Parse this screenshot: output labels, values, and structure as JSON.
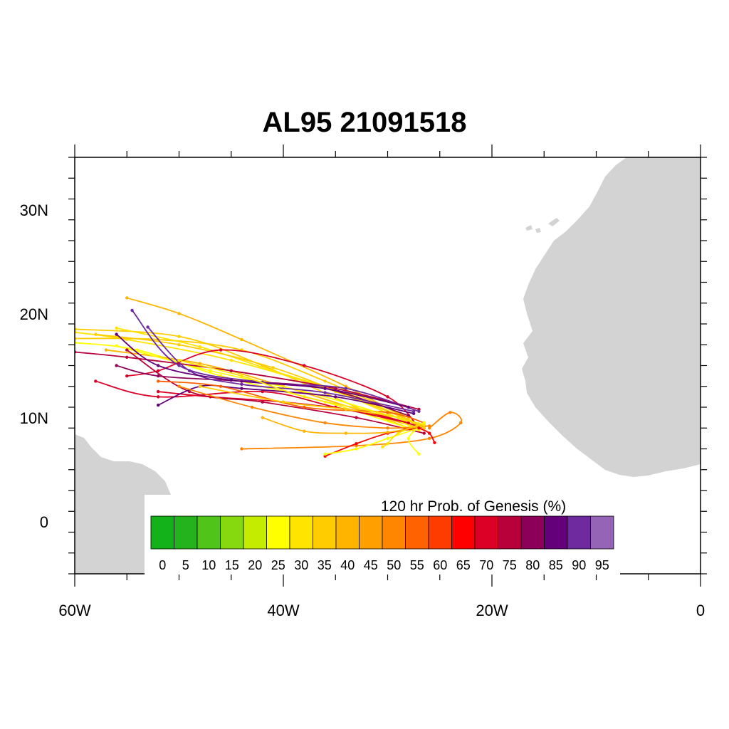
{
  "title": "AL95 21091518",
  "map": {
    "lon_range": [
      -60,
      0
    ],
    "lat_range": [
      -5,
      35
    ],
    "lon_ticks": [
      {
        "value": -60,
        "label": "60W"
      },
      {
        "value": -40,
        "label": "40W"
      },
      {
        "value": -20,
        "label": "20W"
      },
      {
        "value": 0,
        "label": "0"
      }
    ],
    "lat_ticks": [
      {
        "value": 0,
        "label": "0"
      },
      {
        "value": 10,
        "label": "10N"
      },
      {
        "value": 20,
        "label": "20N"
      },
      {
        "value": 30,
        "label": "30N"
      }
    ],
    "land_color": "#d3d3d3"
  },
  "colorbar": {
    "title": "120 hr Prob. of Genesis (%)",
    "labels": [
      "0",
      "5",
      "10",
      "15",
      "20",
      "25",
      "30",
      "35",
      "40",
      "45",
      "50",
      "55",
      "60",
      "65",
      "70",
      "75",
      "80",
      "85",
      "90",
      "95"
    ],
    "colors": [
      "#13b11a",
      "#24b31c",
      "#50c419",
      "#86d80f",
      "#c4ec00",
      "#ffff00",
      "#ffe400",
      "#ffcc00",
      "#ffb400",
      "#ff9f00",
      "#ff8600",
      "#ff6200",
      "#ff3c00",
      "#ff0000",
      "#dc0026",
      "#b8003a",
      "#8c0059",
      "#63007a",
      "#6f2aa0",
      "#9664b6"
    ]
  },
  "tracks": [
    {
      "color": "#ffcc00",
      "points": [
        [
          -28,
          9
        ],
        [
          -33,
          11
        ],
        [
          -42,
          15
        ],
        [
          -50,
          17.8
        ],
        [
          -60,
          18.5
        ]
      ]
    },
    {
      "color": "#ffe400",
      "points": [
        [
          -28,
          9.5
        ],
        [
          -35,
          12.5
        ],
        [
          -45,
          15.5
        ],
        [
          -55,
          17.5
        ],
        [
          -60,
          18.2
        ]
      ]
    },
    {
      "color": "#ffb400",
      "points": [
        [
          -27.5,
          9.5
        ],
        [
          -34,
          13
        ],
        [
          -44,
          17.5
        ],
        [
          -50,
          20
        ],
        [
          -55,
          21.5
        ]
      ]
    },
    {
      "color": "#ffff00",
      "points": [
        [
          -28,
          9
        ],
        [
          -36,
          11.5
        ],
        [
          -46,
          14
        ],
        [
          -54,
          16.5
        ],
        [
          -60,
          17.2
        ]
      ]
    },
    {
      "color": "#ffcc00",
      "points": [
        [
          -28,
          10
        ],
        [
          -36,
          13.5
        ],
        [
          -44,
          16.5
        ],
        [
          -52,
          17.5
        ],
        [
          -60,
          17.6
        ]
      ]
    },
    {
      "color": "#ffe400",
      "points": [
        [
          -27,
          9.2
        ],
        [
          -33,
          12
        ],
        [
          -41,
          14.5
        ],
        [
          -48,
          16.8
        ],
        [
          -56,
          18.6
        ]
      ]
    },
    {
      "color": "#ffb400",
      "points": [
        [
          -27,
          9
        ],
        [
          -32,
          10.5
        ],
        [
          -40,
          13
        ],
        [
          -48,
          15.2
        ],
        [
          -57,
          16.5
        ]
      ]
    },
    {
      "color": "#ffff00",
      "points": [
        [
          -27,
          8.8
        ],
        [
          -31,
          10.5
        ],
        [
          -38,
          12.5
        ],
        [
          -47,
          14.5
        ],
        [
          -56,
          16.9
        ]
      ]
    },
    {
      "color": "#ffcc00",
      "points": [
        [
          -27,
          9.4
        ],
        [
          -33,
          11.8
        ],
        [
          -41,
          14.8
        ],
        [
          -50,
          17
        ],
        [
          -58,
          18
        ]
      ]
    },
    {
      "color": "#dc0026",
      "points": [
        [
          -28,
          9.5
        ],
        [
          -35,
          11
        ],
        [
          -42,
          12.5
        ],
        [
          -52,
          12
        ],
        [
          -58,
          13.5
        ]
      ]
    },
    {
      "color": "#dc0026",
      "points": [
        [
          -27,
          9
        ],
        [
          -30,
          12
        ],
        [
          -38,
          15
        ],
        [
          -46,
          16.5
        ],
        [
          -52,
          14.5
        ],
        [
          -55,
          14
        ]
      ]
    },
    {
      "color": "#b8003a",
      "points": [
        [
          -27,
          10.8
        ],
        [
          -35,
          12.8
        ],
        [
          -45,
          14.5
        ],
        [
          -55,
          15.8
        ],
        [
          -60,
          16.3
        ]
      ]
    },
    {
      "color": "#8c0059",
      "points": [
        [
          -28,
          10.2
        ],
        [
          -36,
          12.8
        ],
        [
          -44,
          13.5
        ],
        [
          -52,
          14
        ],
        [
          -56,
          15
        ]
      ]
    },
    {
      "color": "#dc0026",
      "points": [
        [
          -26.5,
          9
        ],
        [
          -32,
          10.5
        ],
        [
          -40,
          11.5
        ],
        [
          -47,
          12
        ],
        [
          -52,
          12.5
        ]
      ]
    },
    {
      "color": "#b8003a",
      "points": [
        [
          -26.5,
          8.5
        ],
        [
          -33,
          10
        ],
        [
          -42,
          11.5
        ],
        [
          -49,
          12.5
        ],
        [
          -55,
          16.5
        ]
      ]
    },
    {
      "color": "#63007a",
      "points": [
        [
          -27.5,
          10.4
        ],
        [
          -35,
          12
        ],
        [
          -44,
          12.8
        ],
        [
          -48,
          13
        ],
        [
          -52,
          11.2
        ]
      ]
    },
    {
      "color": "#6f2aa0",
      "points": [
        [
          -27.5,
          10.6
        ],
        [
          -36,
          12.4
        ],
        [
          -44,
          13.2
        ],
        [
          -49,
          14.5
        ],
        [
          -53,
          18.7
        ]
      ]
    },
    {
      "color": "#6f2aa0",
      "points": [
        [
          -27,
          10.6
        ],
        [
          -34,
          12.8
        ],
        [
          -42,
          13.4
        ],
        [
          -50,
          15
        ],
        [
          -54.5,
          20.3
        ]
      ]
    },
    {
      "color": "#63007a",
      "points": [
        [
          -28,
          11
        ],
        [
          -36,
          12.8
        ],
        [
          -45,
          13.6
        ],
        [
          -52,
          15
        ],
        [
          -56,
          18
        ]
      ]
    },
    {
      "color": "#ff8600",
      "points": [
        [
          -26,
          9
        ],
        [
          -24,
          10.5
        ],
        [
          -23,
          9.5
        ],
        [
          -26,
          8
        ],
        [
          -33,
          7.3
        ],
        [
          -44,
          7
        ]
      ]
    },
    {
      "color": "#ff8600",
      "points": [
        [
          -26,
          9.2
        ],
        [
          -30,
          9
        ],
        [
          -36,
          9.5
        ],
        [
          -43,
          11
        ],
        [
          -50,
          13
        ]
      ]
    },
    {
      "color": "#ff6200",
      "points": [
        [
          -26.5,
          9.5
        ],
        [
          -30,
          10.5
        ],
        [
          -38,
          11
        ],
        [
          -46,
          13
        ],
        [
          -52,
          13.5
        ]
      ]
    },
    {
      "color": "#ff0000",
      "points": [
        [
          -27,
          9
        ],
        [
          -30,
          8.5
        ],
        [
          -33,
          7.5
        ],
        [
          -36,
          6.3
        ]
      ]
    },
    {
      "color": "#ffff00",
      "points": [
        [
          -27,
          9
        ],
        [
          -30,
          8
        ],
        [
          -33,
          7
        ],
        [
          -36,
          6.5
        ]
      ]
    },
    {
      "color": "#ffe400",
      "points": [
        [
          -26.5,
          9.5
        ],
        [
          -29,
          8.5
        ],
        [
          -30,
          7.5
        ],
        [
          -30.5,
          7.2
        ]
      ]
    },
    {
      "color": "#ffff00",
      "points": [
        [
          -26.5,
          9.5
        ],
        [
          -28,
          8
        ],
        [
          -27,
          6.5
        ]
      ]
    },
    {
      "color": "#ffb400",
      "points": [
        [
          -26.8,
          9.2
        ],
        [
          -30,
          8.6
        ],
        [
          -34,
          8.5
        ],
        [
          -38,
          8.7
        ],
        [
          -42,
          10
        ]
      ]
    },
    {
      "color": "#ff0000",
      "points": [
        [
          -27,
          9
        ],
        [
          -26,
          8.5
        ],
        [
          -25.5,
          7.6
        ]
      ]
    },
    {
      "color": "#ffcc00",
      "points": [
        [
          -26.5,
          9
        ],
        [
          -29,
          10
        ],
        [
          -34,
          10.8
        ],
        [
          -40,
          11.5
        ],
        [
          -48,
          13
        ]
      ]
    },
    {
      "color": "#ffe400",
      "points": [
        [
          -26.5,
          9.3
        ],
        [
          -31,
          10.5
        ],
        [
          -38,
          12
        ],
        [
          -44,
          14
        ],
        [
          -50,
          15.5
        ]
      ]
    }
  ]
}
